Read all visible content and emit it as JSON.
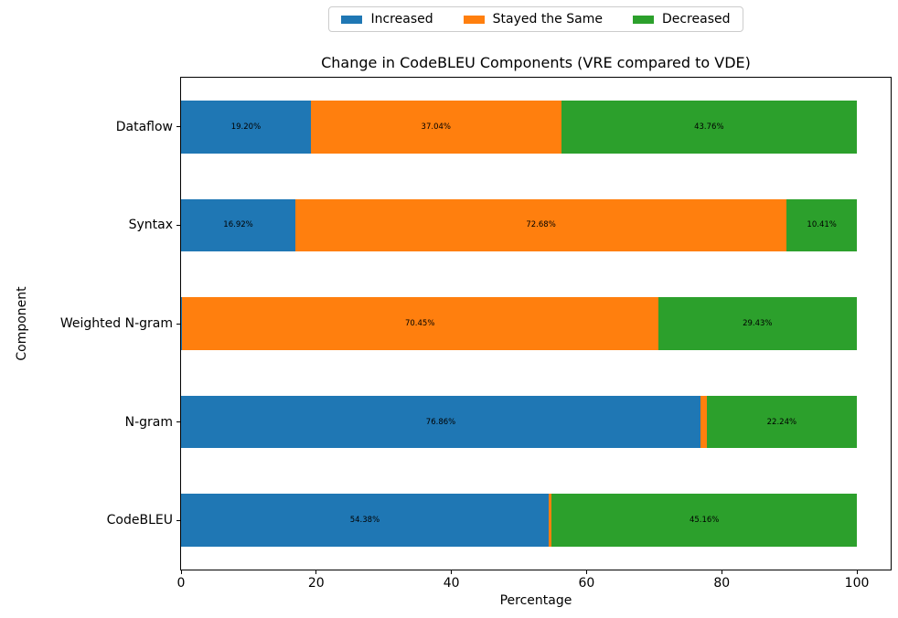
{
  "chart_data": {
    "type": "bar",
    "orientation": "horizontal",
    "stacked": true,
    "title": "Change in CodeBLEU Components (VRE compared to VDE)",
    "xlabel": "Percentage",
    "ylabel": "Component",
    "xlim": [
      0,
      105
    ],
    "xticks": [
      0,
      20,
      40,
      60,
      80,
      100
    ],
    "grid": false,
    "legend_position": "top-center-outside",
    "categories": [
      "Dataflow",
      "Syntax",
      "Weighted N-gram",
      "N-gram",
      "CodeBLEU"
    ],
    "series": [
      {
        "name": "Increased",
        "color": "#1f77b4",
        "values": [
          19.2,
          16.92,
          0.12,
          76.86,
          54.38
        ]
      },
      {
        "name": "Stayed the Same",
        "color": "#ff7f0e",
        "values": [
          37.04,
          72.68,
          70.45,
          0.9,
          0.46
        ]
      },
      {
        "name": "Decreased",
        "color": "#2ca02c",
        "values": [
          43.76,
          10.41,
          29.43,
          22.24,
          45.16
        ]
      }
    ],
    "segment_labels": [
      [
        "19.20%",
        "37.04%",
        "43.76%"
      ],
      [
        "16.92%",
        "72.68%",
        "10.41%"
      ],
      [
        "",
        "70.45%",
        "29.43%"
      ],
      [
        "76.86%",
        "",
        "22.24%"
      ],
      [
        "54.38%",
        "",
        "45.16%"
      ]
    ]
  }
}
